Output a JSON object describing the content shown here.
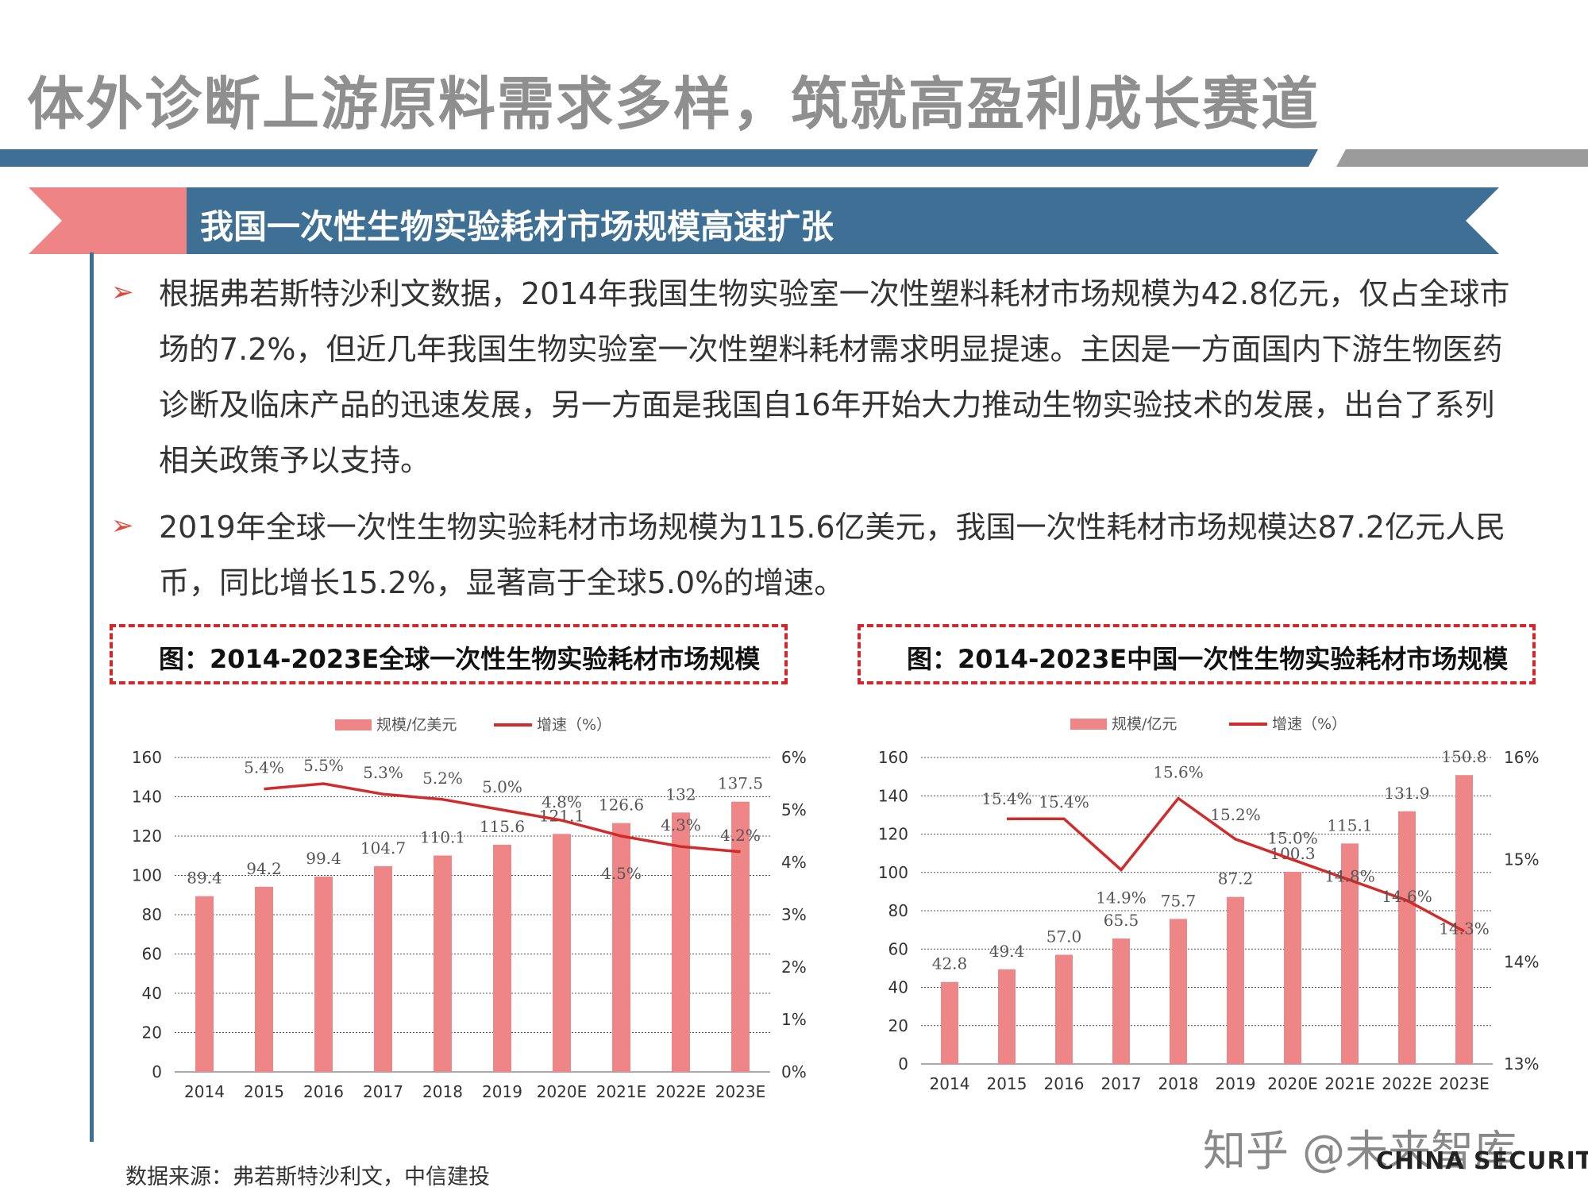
{
  "page": {
    "title": "体外诊断上游原料需求多样，筑就高盈利成长赛道",
    "banner": "我国一次性生物实验耗材市场规模高速扩张",
    "bullet_symbol": "➢",
    "paragraphs": [
      "根据弗若斯特沙利文数据，2014年我国生物实验室一次性塑料耗材市场规模为42.8亿元，仅占全球市场的7.2%，但近几年我国生物实验室一次性塑料耗材需求明显提速。主因是一方面国内下游生物医药诊断及临床产品的迅速发展，另一方面是我国自16年开始大力推动生物实验技术的发展，出台了系列相关政策予以支持。",
      "2019年全球一次性生物实验耗材市场规模为115.6亿美元，我国一次性耗材市场规模达87.2亿元人民币，同比增长15.2%，显著高于全球5.0%的增速。"
    ],
    "source": "数据来源：弗若斯特沙利文，中信建投",
    "watermark": "知乎 @未来智库",
    "logo_sub": "CHINA SECURITIES",
    "colors": {
      "bar": "#ee8587",
      "line": "#d12b2b",
      "accent_blue": "#3e6f95",
      "accent_pink": "#ef8486"
    }
  },
  "chart_data": [
    {
      "type": "bar",
      "title": "图：2014-2023E全球一次性生物实验耗材市场规模",
      "categories": [
        "2014",
        "2015",
        "2016",
        "2017",
        "2018",
        "2019",
        "2020E",
        "2021E",
        "2022E",
        "2023E"
      ],
      "series": [
        {
          "name": "规模/亿美元",
          "type": "bar",
          "axis": "left",
          "values": [
            89.4,
            94.2,
            99.4,
            104.7,
            110.1,
            115.6,
            121.1,
            126.6,
            132,
            137.5
          ],
          "labels": [
            "89.4",
            "94.2",
            "99.4",
            "104.7",
            "110.1",
            "115.6",
            "121.1",
            "126.6",
            "132",
            "137.5"
          ]
        },
        {
          "name": "增速（%）",
          "type": "line",
          "axis": "right",
          "values": [
            null,
            5.4,
            5.5,
            5.3,
            5.2,
            5.0,
            4.8,
            4.5,
            4.3,
            4.2
          ],
          "labels": [
            "",
            "5.4%",
            "5.5%",
            "5.3%",
            "5.2%",
            "5.0%",
            "4.8%",
            "4.5%",
            "4.3%",
            "4.2%"
          ]
        }
      ],
      "ylim": [
        0,
        160
      ],
      "yticks": [
        0,
        20,
        40,
        60,
        80,
        100,
        120,
        140,
        160
      ],
      "y2lim": [
        0,
        6
      ],
      "y2ticks": [
        "0%",
        "1%",
        "2%",
        "3%",
        "4%",
        "5%",
        "6%"
      ],
      "grid": true,
      "legend": "top-center"
    },
    {
      "type": "bar",
      "title": "图：2014-2023E中国一次性生物实验耗材市场规模",
      "categories": [
        "2014",
        "2015",
        "2016",
        "2017",
        "2018",
        "2019",
        "2020E",
        "2021E",
        "2022E",
        "2023E"
      ],
      "series": [
        {
          "name": "规模/亿元",
          "type": "bar",
          "axis": "left",
          "values": [
            42.8,
            49.4,
            57.0,
            65.5,
            75.7,
            87.2,
            100.3,
            115.1,
            131.9,
            150.8
          ],
          "labels": [
            "42.8",
            "49.4",
            "57.0",
            "65.5",
            "75.7",
            "87.2",
            "100.3",
            "115.1",
            "131.9",
            "150.8"
          ]
        },
        {
          "name": "增速（%）",
          "type": "line",
          "axis": "right",
          "values": [
            null,
            15.4,
            15.4,
            14.9,
            15.6,
            15.2,
            15.0,
            14.8,
            14.6,
            14.3
          ],
          "labels": [
            "",
            "15.4%",
            "15.4%",
            "14.9%",
            "15.6%",
            "15.2%",
            "15.0%",
            "14.8%",
            "14.6%",
            "14.3%"
          ]
        }
      ],
      "ylim": [
        0,
        160
      ],
      "yticks": [
        0,
        20,
        40,
        60,
        80,
        100,
        120,
        140,
        160
      ],
      "y2lim": [
        13,
        16
      ],
      "y2ticks": [
        "13%",
        "14%",
        "15%",
        "16%"
      ],
      "grid": true,
      "legend": "top-center"
    }
  ]
}
